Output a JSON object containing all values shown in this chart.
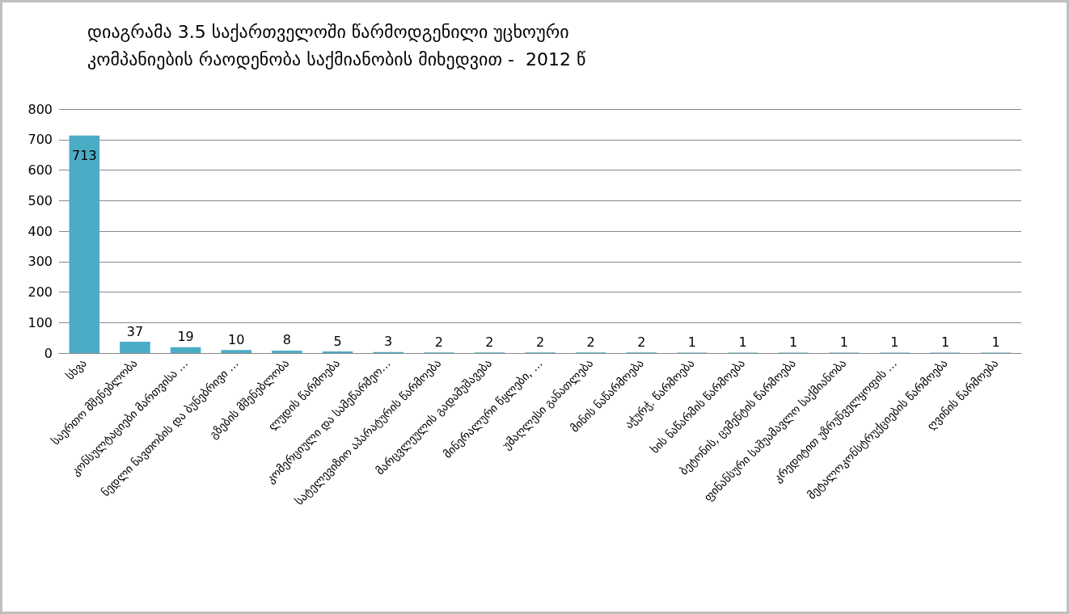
{
  "chart_data": {
    "type": "bar",
    "title": "დიაგრამა 3.5 საქართველოში წარმოდგენილი უცხოური კომპანიების რაოდენობა საქმიანობის მიხედვით -  2012 წ",
    "categories": [
      "სხვა",
      "საერთო მშენებლობა",
      "კონსულტაციები მართვისა …",
      "ნედლი ნავთობის და ბუნებრივი …",
      "გზების მშენებლობა",
      "ლუდის წარმოება",
      "კომერციული და სამეწარმეო…",
      "სატელევიზიო აპარატურის წარმოება",
      "მარცვლეულის გადამუშავება",
      "მინერალური წყლები, …",
      "უმაღლესი განათლება",
      "მინის ნაწარმოება",
      "აჭურჭ. წარმოება",
      "ხის ნაწარმის წარმოება",
      "ბეტონის, ცემენტის წარმოება",
      "ფინანსური საშუამავლო საქმიანობა",
      "კრედიტით უზრუნველყოფის …",
      "მეტალოკონსტრუქციების წარმოება",
      "ღვინის წარმოება"
    ],
    "values": [
      713,
      37,
      19,
      10,
      8,
      5,
      3,
      2,
      2,
      2,
      2,
      2,
      1,
      1,
      1,
      1,
      1,
      1,
      1
    ],
    "color": "#4bacc6",
    "ylim": [
      0,
      800
    ],
    "yticks": [
      0,
      100,
      200,
      300,
      400,
      500,
      600,
      700,
      800
    ],
    "grid": "y",
    "data_labels": true
  }
}
